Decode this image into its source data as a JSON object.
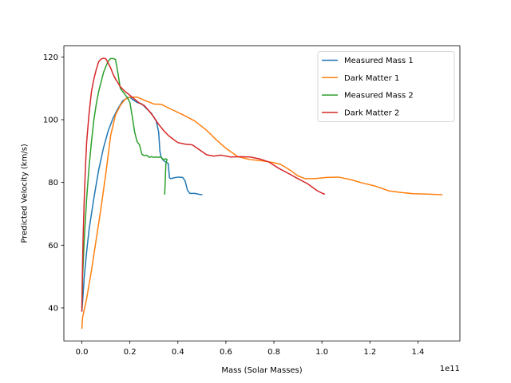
{
  "chart_data": {
    "type": "line",
    "xlabel": "Mass (Solar Masses)",
    "ylabel": "Predicted Velocity (km/s)",
    "x_scale_label": "1e11",
    "xlim": [
      -0.075,
      1.575
    ],
    "ylim": [
      29.5,
      123.5
    ],
    "x_ticks": [
      0.0,
      0.2,
      0.4,
      0.6,
      0.8,
      1.0,
      1.2,
      1.4
    ],
    "x_tick_labels": [
      "0.0",
      "0.2",
      "0.4",
      "0.6",
      "0.8",
      "1.0",
      "1.2",
      "1.4"
    ],
    "y_ticks": [
      40,
      60,
      80,
      100,
      120
    ],
    "y_tick_labels": [
      "40",
      "60",
      "80",
      "100",
      "120"
    ],
    "grid": false,
    "legend_position": "top-right",
    "series": [
      {
        "name": "Measured Mass 1",
        "color": "#1f77b4",
        "x": [
          0.0,
          0.003,
          0.01,
          0.02,
          0.03,
          0.05,
          0.07,
          0.09,
          0.11,
          0.13,
          0.15,
          0.17,
          0.19,
          0.2,
          0.21,
          0.23,
          0.25,
          0.27,
          0.29,
          0.31,
          0.32,
          0.325,
          0.33,
          0.34,
          0.35,
          0.36,
          0.365,
          0.37,
          0.38,
          0.4,
          0.42,
          0.43,
          0.44,
          0.45,
          0.47,
          0.49,
          0.5
        ],
        "y": [
          39,
          42,
          50,
          58,
          65,
          75,
          84,
          91,
          96.5,
          100.5,
          103.5,
          106,
          107,
          107.2,
          106.5,
          105.5,
          105,
          103.5,
          102,
          99.5,
          96,
          90,
          88,
          87,
          86.5,
          86,
          81.5,
          81.2,
          81.4,
          81.7,
          81.6,
          80.5,
          77.5,
          76.5,
          76.5,
          76.2,
          76.1
        ]
      },
      {
        "name": "Dark Matter 1",
        "color": "#ff7f0e",
        "x": [
          0.0,
          0.003,
          0.02,
          0.04,
          0.06,
          0.08,
          0.1,
          0.12,
          0.14,
          0.16,
          0.18,
          0.2,
          0.23,
          0.26,
          0.3,
          0.33,
          0.37,
          0.42,
          0.47,
          0.52,
          0.56,
          0.6,
          0.65,
          0.7,
          0.75,
          0.8,
          0.83,
          0.87,
          0.9,
          0.93,
          0.97,
          1.02,
          1.07,
          1.12,
          1.17,
          1.22,
          1.28,
          1.33,
          1.38,
          1.44,
          1.5
        ],
        "y": [
          33.5,
          37,
          43,
          52,
          62,
          72,
          83,
          95,
          101.5,
          104.5,
          106.5,
          107.2,
          107.2,
          106.2,
          105,
          104.9,
          103.4,
          101.6,
          99.6,
          96.6,
          93.6,
          90.9,
          88.2,
          87.3,
          86.9,
          86.3,
          85.7,
          83.8,
          82.1,
          81.2,
          81.2,
          81.6,
          81.7,
          80.9,
          79.8,
          78.9,
          77.3,
          76.8,
          76.4,
          76.3,
          76.1
        ]
      },
      {
        "name": "Measured Mass 2",
        "color": "#2ca02c",
        "x": [
          0.0,
          0.003,
          0.01,
          0.02,
          0.03,
          0.04,
          0.05,
          0.06,
          0.07,
          0.08,
          0.09,
          0.1,
          0.11,
          0.12,
          0.13,
          0.14,
          0.15,
          0.16,
          0.17,
          0.18,
          0.19,
          0.2,
          0.21,
          0.22,
          0.23,
          0.24,
          0.25,
          0.26,
          0.27,
          0.28,
          0.29,
          0.3,
          0.31,
          0.32,
          0.33,
          0.34,
          0.345,
          0.35,
          0.355,
          0.35,
          0.348,
          0.346,
          0.345
        ],
        "y": [
          40,
          50,
          62,
          75,
          85,
          93,
          100,
          105,
          109,
          112,
          115,
          117,
          118.7,
          119.5,
          119.5,
          119.2,
          115,
          110,
          109,
          108,
          107,
          105.5,
          101,
          96,
          93,
          92,
          89,
          88.5,
          88.7,
          88,
          88.2,
          88,
          88.1,
          88,
          88.1,
          87.2,
          87.5,
          87.5,
          87.3,
          86,
          82,
          78,
          76.3
        ]
      },
      {
        "name": "Dark Matter 2",
        "color": "#d62728",
        "x": [
          0.0,
          0.002,
          0.005,
          0.01,
          0.015,
          0.02,
          0.03,
          0.04,
          0.05,
          0.06,
          0.07,
          0.08,
          0.09,
          0.1,
          0.11,
          0.12,
          0.13,
          0.14,
          0.15,
          0.16,
          0.18,
          0.2,
          0.22,
          0.24,
          0.26,
          0.28,
          0.3,
          0.32,
          0.34,
          0.36,
          0.38,
          0.4,
          0.43,
          0.46,
          0.49,
          0.52,
          0.55,
          0.58,
          0.62,
          0.66,
          0.7,
          0.74,
          0.78,
          0.82,
          0.86,
          0.9,
          0.94,
          0.98,
          1.0,
          1.01
        ],
        "y": [
          39,
          50,
          62,
          75,
          85,
          93,
          102,
          109,
          113,
          116,
          118.5,
          119.3,
          119.6,
          119.4,
          118,
          116.5,
          114.5,
          113,
          111.8,
          110.5,
          109,
          107.8,
          106.5,
          105.3,
          104.5,
          102.8,
          100.8,
          98.5,
          96.6,
          95,
          93.8,
          92.7,
          92.2,
          92,
          90.4,
          88.8,
          88.4,
          88.7,
          88.1,
          88.2,
          88.1,
          87.5,
          86.5,
          84.5,
          82.9,
          81.2,
          79.6,
          77.4,
          76.6,
          76.3
        ]
      }
    ]
  }
}
